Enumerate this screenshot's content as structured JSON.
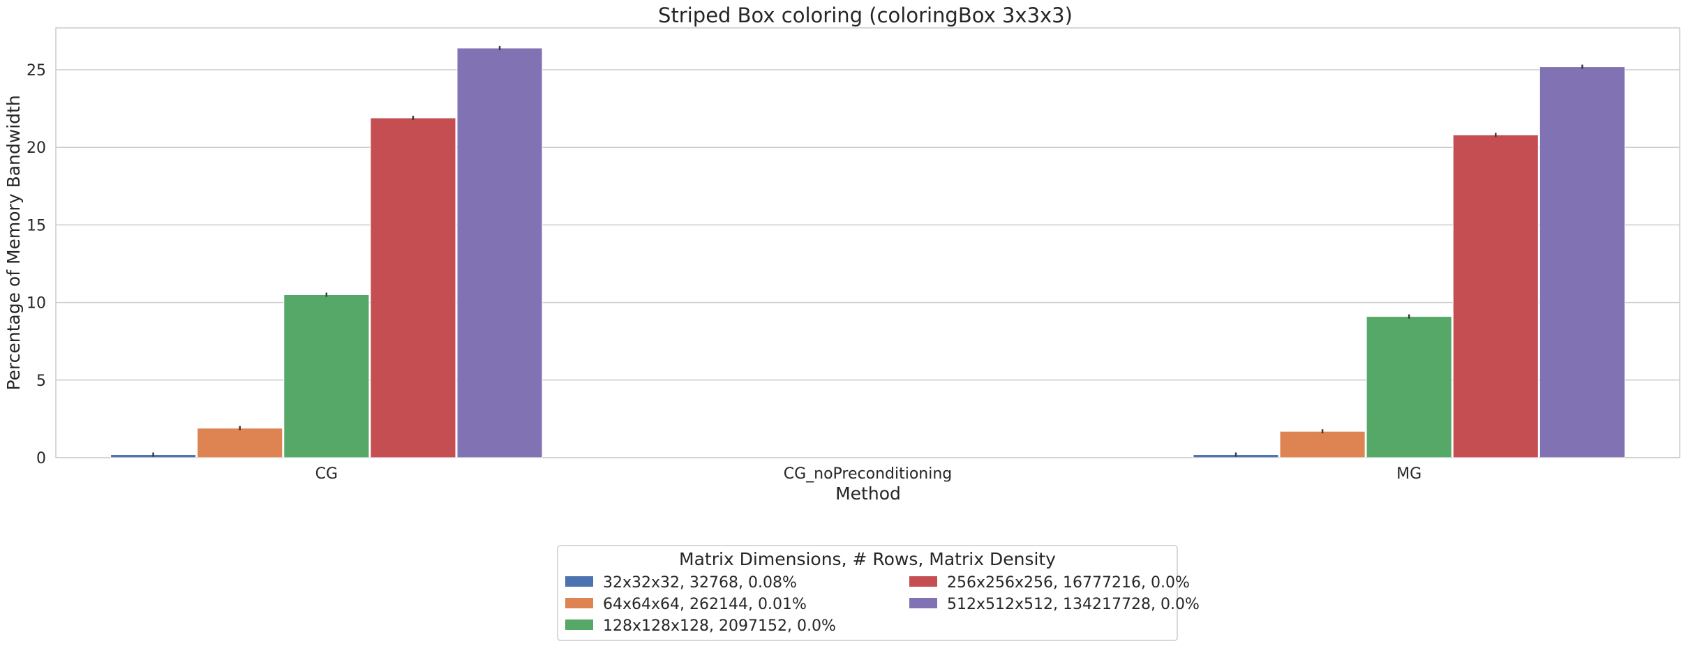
{
  "chart_data": {
    "type": "bar",
    "title": "Striped Box coloring (coloringBox 3x3x3)",
    "xlabel": "Method",
    "ylabel": "Percentage of Memory Bandwidth",
    "categories": [
      "CG",
      "CG_noPreconditioning",
      "MG"
    ],
    "ylim": [
      0,
      27.7
    ],
    "yticks": [
      0,
      5,
      10,
      15,
      20,
      25
    ],
    "grid": true,
    "legend": {
      "title": "Matrix Dimensions, # Rows, Matrix Density",
      "placement": "bottom-center",
      "columns": 2
    },
    "series": [
      {
        "name": "32x32x32, 32768, 0.08%",
        "color": "#4c72b0",
        "values": [
          0.2,
          null,
          0.2
        ]
      },
      {
        "name": "64x64x64, 262144, 0.01%",
        "color": "#dd8452",
        "values": [
          1.9,
          null,
          1.7
        ]
      },
      {
        "name": "128x128x128, 2097152, 0.0%",
        "color": "#55a868",
        "values": [
          10.5,
          null,
          9.1
        ]
      },
      {
        "name": "256x256x256, 16777216, 0.0%",
        "color": "#c44e52",
        "values": [
          21.9,
          null,
          20.8
        ]
      },
      {
        "name": "512x512x512, 134217728, 0.0%",
        "color": "#8172b3",
        "values": [
          26.4,
          null,
          25.2
        ]
      }
    ]
  }
}
